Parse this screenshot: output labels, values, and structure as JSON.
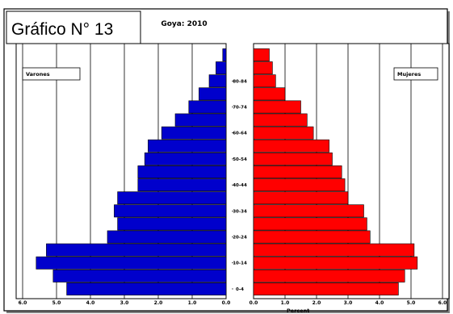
{
  "figure_caption": "Gráfico N° 13",
  "chart_data": {
    "type": "bar",
    "title": "Goya: 2010",
    "xlabel": "Percent",
    "ylabel": "",
    "age_tick_labels": [
      {
        "index": 0,
        "label": "0-4"
      },
      {
        "index": 2,
        "label": "10-14"
      },
      {
        "index": 4,
        "label": "20-24"
      },
      {
        "index": 6,
        "label": "30-34"
      },
      {
        "index": 8,
        "label": "40-44"
      },
      {
        "index": 10,
        "label": "50-54"
      },
      {
        "index": 12,
        "label": "60-64"
      },
      {
        "index": 14,
        "label": "70-74"
      },
      {
        "index": 16,
        "label": "80-84"
      }
    ],
    "n_groups": 19,
    "xlim": [
      0,
      6
    ],
    "x_tick_values": [
      6,
      5,
      4,
      3,
      2,
      1,
      0
    ],
    "x_tick_labels": [
      "6.0",
      "5.0",
      "4.0",
      "3.0",
      "2.0",
      "1.0",
      "0.0"
    ],
    "grid": true,
    "series": [
      {
        "name": "Varones",
        "side": "left",
        "color": "#0000cc",
        "values": [
          4.7,
          5.1,
          5.6,
          5.3,
          3.5,
          3.2,
          3.3,
          3.2,
          2.6,
          2.6,
          2.4,
          2.3,
          1.9,
          1.5,
          1.1,
          0.8,
          0.5,
          0.3,
          0.1
        ]
      },
      {
        "name": "Mujeres",
        "side": "right",
        "color": "#ff0000",
        "values": [
          4.6,
          4.8,
          5.2,
          5.1,
          3.7,
          3.6,
          3.5,
          3.0,
          2.9,
          2.8,
          2.5,
          2.4,
          1.9,
          1.7,
          1.5,
          1.0,
          0.7,
          0.6,
          0.5
        ]
      }
    ]
  }
}
